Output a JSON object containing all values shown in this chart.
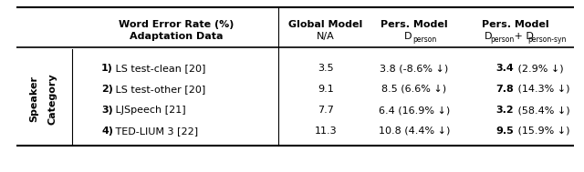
{
  "rows": [
    {
      "label_bold": "1)",
      "label_rest": " LS test-clean [20]",
      "global": "3.5",
      "pers1": "3.8 (-8.6% ↓)",
      "pers2_bold": "3.4",
      "pers2_rest": " (2.9% ↓)"
    },
    {
      "label_bold": "2)",
      "label_rest": " LS test-other [20]",
      "global": "9.1",
      "pers1": "8.5 (6.6% ↓)",
      "pers2_bold": "7.8",
      "pers2_rest": " (14.3% ↓)"
    },
    {
      "label_bold": "3)",
      "label_rest": " LJSpeech [21]",
      "global": "7.7",
      "pers1": "6.4 (16.9% ↓)",
      "pers2_bold": "3.2",
      "pers2_rest": " (58.4% ↓)"
    },
    {
      "label_bold": "4)",
      "label_rest": " TED-LIUM 3 [22]",
      "global": "11.3",
      "pers1": "10.8 (4.4% ↓)",
      "pers2_bold": "9.5",
      "pers2_rest": " (15.9% ↓)"
    }
  ],
  "bg_color": "#ffffff",
  "text_color": "#000000",
  "line_color": "#000000",
  "fs_header": 8.0,
  "fs_body": 8.0,
  "fs_sub": 5.5
}
